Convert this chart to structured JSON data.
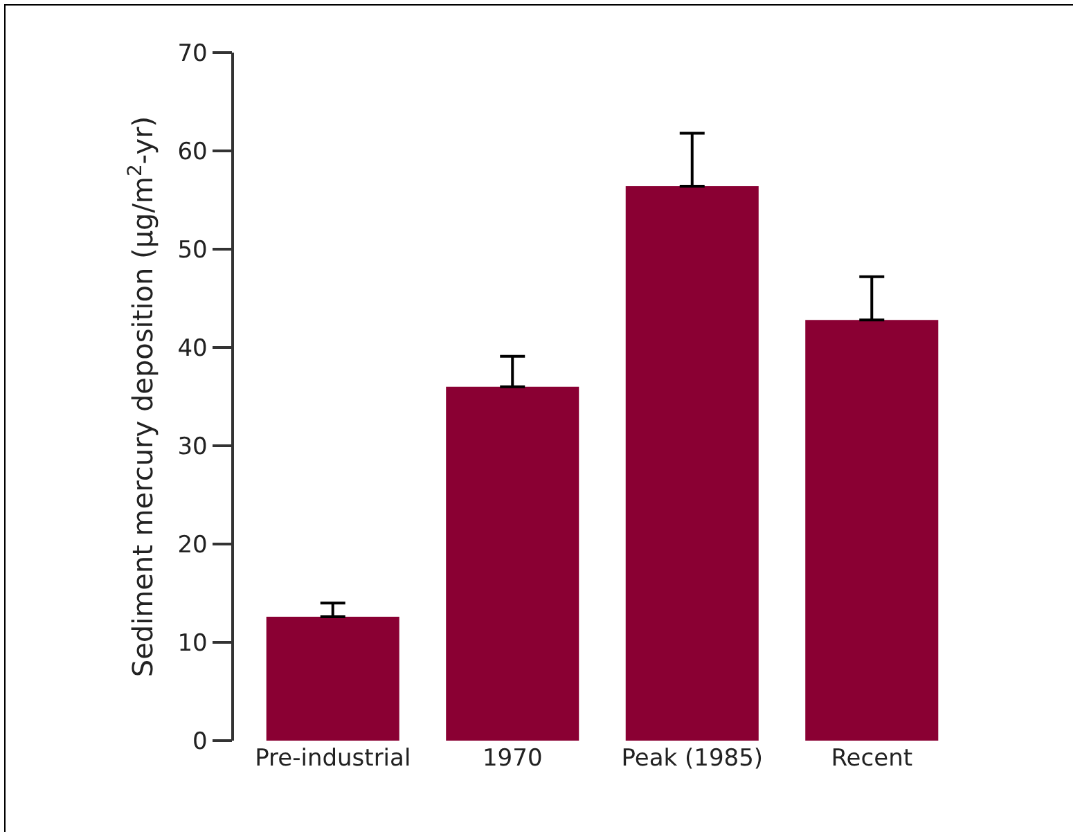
{
  "chart_data": {
    "type": "bar",
    "ylabel": "Sediment mercury deposition (µg/m$^{2}$-yr)",
    "categories": [
      "Pre-industrial",
      "1970",
      "Peak (1985)",
      "Recent"
    ],
    "values": [
      12.6,
      36.0,
      56.4,
      42.8
    ],
    "errors": [
      [
        12.6,
        14.0
      ],
      [
        36.0,
        39.1
      ],
      [
        56.4,
        61.8
      ],
      [
        42.8,
        47.2
      ]
    ],
    "color": "#8a0033",
    "ylim": [
      0,
      70
    ],
    "yticks": [
      0,
      10,
      20,
      30,
      40,
      50,
      60,
      70
    ],
    "grid": false
  }
}
